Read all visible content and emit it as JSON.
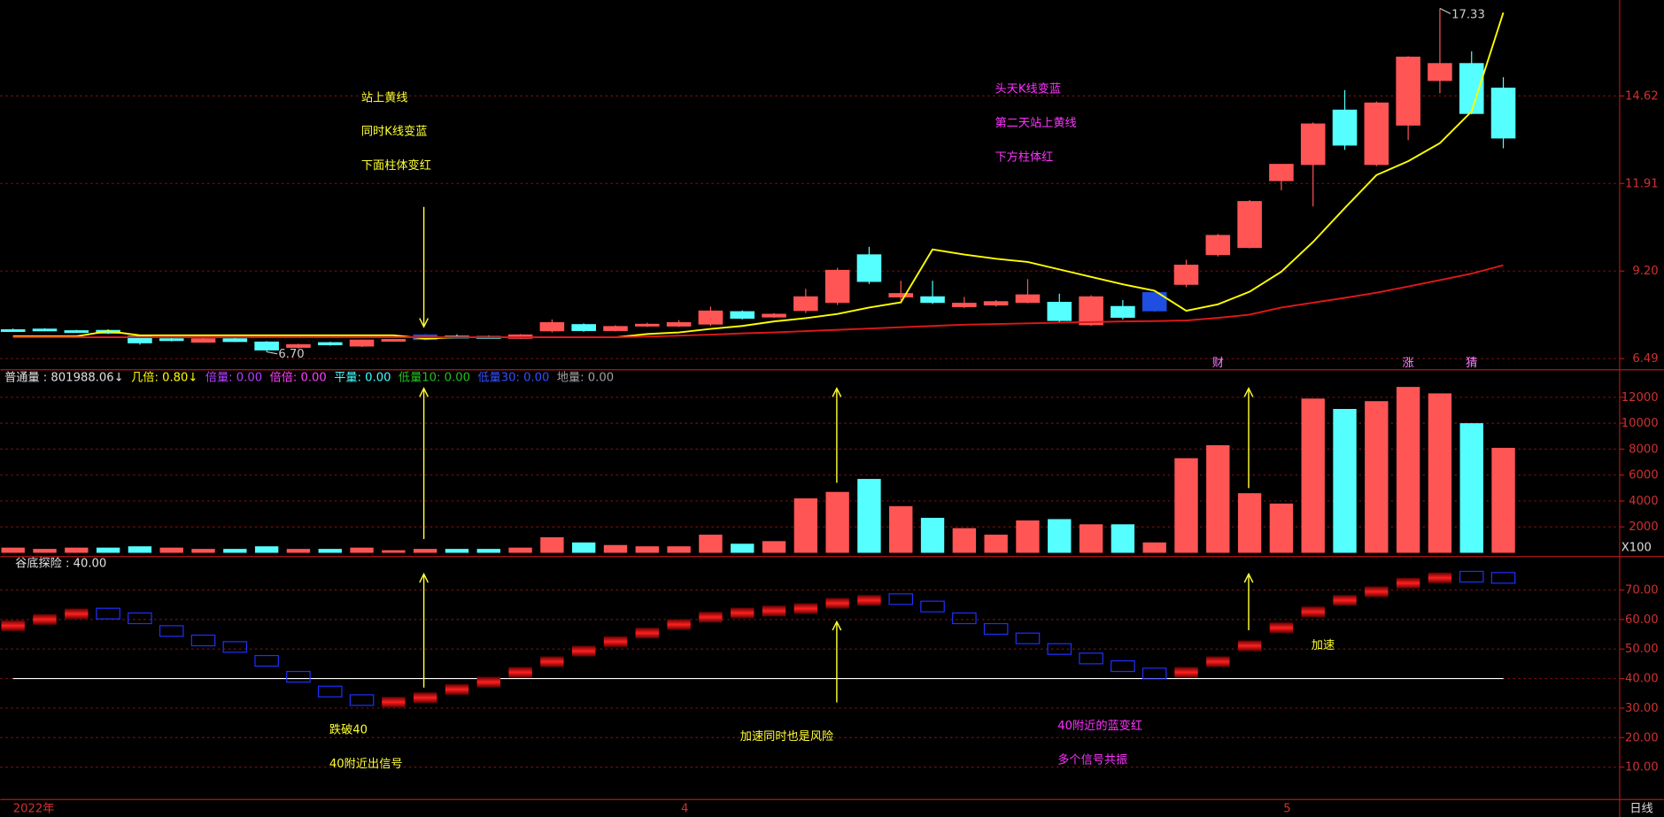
{
  "chart_data": [
    {
      "type": "candlestick",
      "open": [
        7.38,
        7.4,
        7.35,
        7.36,
        7.18,
        7.1,
        7.0,
        7.1,
        7.0,
        6.84,
        6.98,
        6.88,
        7.06,
        7.22,
        7.18,
        7.17,
        7.12,
        7.35,
        7.54,
        7.36,
        7.5,
        7.5,
        7.56,
        7.94,
        7.78,
        7.98,
        8.23,
        9.7,
        8.4,
        8.4,
        8.1,
        8.15,
        8.23,
        8.23,
        7.54,
        8.1,
        8.53,
        8.79,
        9.71,
        9.93,
        12.0,
        12.5,
        14.18,
        12.5,
        13.72,
        15.1,
        15.62,
        14.86
      ],
      "close": [
        7.36,
        7.36,
        7.33,
        7.28,
        6.98,
        7.06,
        7.1,
        7.02,
        6.76,
        6.92,
        6.92,
        7.06,
        7.08,
        7.08,
        7.16,
        7.16,
        7.22,
        7.6,
        7.36,
        7.48,
        7.55,
        7.6,
        7.96,
        7.74,
        7.86,
        8.4,
        9.22,
        8.88,
        8.5,
        8.23,
        8.2,
        8.25,
        8.46,
        7.67,
        8.4,
        7.77,
        7.97,
        9.38,
        10.3,
        11.35,
        12.5,
        13.75,
        13.1,
        14.4,
        15.82,
        15.62,
        14.08,
        13.32
      ],
      "high": [
        7.42,
        7.43,
        7.38,
        7.4,
        7.22,
        7.14,
        7.13,
        7.13,
        7.03,
        6.95,
        7.01,
        7.08,
        7.1,
        7.25,
        7.24,
        7.2,
        7.25,
        7.7,
        7.58,
        7.52,
        7.6,
        7.68,
        8.1,
        7.98,
        7.9,
        8.65,
        9.3,
        9.95,
        8.9,
        8.9,
        8.4,
        8.3,
        8.95,
        8.5,
        8.45,
        8.3,
        8.6,
        9.55,
        10.35,
        11.4,
        12.5,
        13.8,
        14.8,
        14.45,
        15.85,
        17.33,
        16.0,
        15.2
      ],
      "low": [
        7.33,
        7.34,
        7.3,
        7.25,
        6.92,
        7.02,
        6.98,
        7.0,
        6.7,
        6.8,
        6.89,
        6.85,
        7.04,
        7.05,
        7.12,
        7.13,
        7.1,
        7.3,
        7.32,
        7.33,
        7.47,
        7.47,
        7.5,
        7.7,
        7.75,
        7.9,
        8.15,
        8.8,
        8.3,
        8.18,
        8.05,
        8.1,
        8.2,
        7.6,
        7.5,
        7.7,
        7.94,
        8.7,
        9.65,
        9.9,
        11.7,
        11.2,
        12.95,
        12.45,
        13.25,
        14.7,
        14.05,
        13.0
      ],
      "colors": [
        "#55ffff",
        "#55ffff",
        "#55ffff",
        "#55ffff",
        "#55ffff",
        "#55ffff",
        "#ff5555",
        "#55ffff",
        "#55ffff",
        "#ff5555",
        "#55ffff",
        "#ff5555",
        "#ff5555",
        "#1f4fe0",
        "#55ffff",
        "#55ffff",
        "#ff5555",
        "#ff5555",
        "#55ffff",
        "#ff5555",
        "#ff5555",
        "#ff5555",
        "#ff5555",
        "#55ffff",
        "#ff5555",
        "#ff5555",
        "#ff5555",
        "#55ffff",
        "#ff5555",
        "#55ffff",
        "#ff5555",
        "#ff5555",
        "#ff5555",
        "#55ffff",
        "#ff5555",
        "#55ffff",
        "#1f4fe0",
        "#ff5555",
        "#ff5555",
        "#ff5555",
        "#ff5555",
        "#ff5555",
        "#55ffff",
        "#ff5555",
        "#ff5555",
        "#ff5555",
        "#55ffff",
        "#55ffff"
      ],
      "lines": [
        {
          "color": "#ffff00",
          "values": [
            7.18,
            7.18,
            7.18,
            7.34,
            7.21,
            7.21,
            7.21,
            7.21,
            7.21,
            7.21,
            7.21,
            7.21,
            7.21,
            7.11,
            7.15,
            7.15,
            7.15,
            7.15,
            7.15,
            7.15,
            7.25,
            7.3,
            7.41,
            7.5,
            7.64,
            7.74,
            7.87,
            8.07,
            8.23,
            9.87,
            9.71,
            9.58,
            9.48,
            9.25,
            9.02,
            8.79,
            8.59,
            7.97,
            8.17,
            8.56,
            9.18,
            10.1,
            11.15,
            12.17,
            12.6,
            13.16,
            14.14,
            17.2
          ]
        },
        {
          "color": "#e01818",
          "values": [
            7.15,
            7.15,
            7.15,
            7.15,
            7.15,
            7.15,
            7.15,
            7.15,
            7.15,
            7.15,
            7.15,
            7.15,
            7.15,
            7.15,
            7.15,
            7.15,
            7.15,
            7.15,
            7.15,
            7.15,
            7.17,
            7.2,
            7.23,
            7.27,
            7.3,
            7.34,
            7.38,
            7.42,
            7.46,
            7.5,
            7.54,
            7.56,
            7.58,
            7.6,
            7.62,
            7.64,
            7.65,
            7.67,
            7.75,
            7.85,
            8.07,
            8.22,
            8.37,
            8.53,
            8.72,
            8.92,
            9.12,
            9.38
          ]
        }
      ],
      "max_label": "17.33",
      "min_label": "6.70",
      "event_labels": [
        null,
        null,
        null,
        null,
        null,
        null,
        null,
        null,
        null,
        null,
        null,
        null,
        null,
        null,
        null,
        null,
        null,
        null,
        null,
        null,
        null,
        null,
        null,
        null,
        null,
        null,
        null,
        null,
        null,
        null,
        null,
        null,
        null,
        null,
        null,
        null,
        null,
        null,
        "财",
        null,
        null,
        null,
        null,
        null,
        "涨",
        null,
        "猜",
        null
      ],
      "ylim": [
        6.16,
        17.59
      ],
      "yticks": [
        6.49,
        {
          "value": 9.2,
          "label": "9.20"
        },
        11.91,
        14.62
      ],
      "grid": true
    },
    {
      "type": "bar",
      "header": [
        {
          "text": "普通量 : 801988.06↓",
          "color": "#e0e0e0"
        },
        {
          "text": "几倍: 0.80↓",
          "color": "#ffff00"
        },
        {
          "text": "倍量: 0.00",
          "color": "#b040ff"
        },
        {
          "text": "倍倍: 0.00",
          "color": "#ff40ff"
        },
        {
          "text": "平量: 0.00",
          "color": "#40ffff"
        },
        {
          "text": "低量10: 0.00",
          "color": "#20c020"
        },
        {
          "text": "低量30: 0.00",
          "color": "#3050ff"
        },
        {
          "text": "地量: 0.00",
          "color": "#a0a0a0"
        }
      ],
      "values": [
        400,
        300,
        400,
        400,
        500,
        400,
        300,
        300,
        500,
        300,
        300,
        400,
        200,
        300,
        300,
        300,
        400,
        1200,
        800,
        600,
        500,
        500,
        1400,
        700,
        900,
        4200,
        4700,
        5700,
        3600,
        2700,
        1900,
        1400,
        2500,
        2600,
        2200,
        2200,
        800,
        7300,
        8300,
        4600,
        3800,
        11900,
        11100,
        11700,
        12800,
        12300,
        10000,
        8100
      ],
      "colors": [
        "#ff5555",
        "#ff5555",
        "#ff5555",
        "#55ffff",
        "#55ffff",
        "#ff5555",
        "#ff5555",
        "#55ffff",
        "#55ffff",
        "#ff5555",
        "#55ffff",
        "#ff5555",
        "#ff5555",
        "#ff5555",
        "#55ffff",
        "#55ffff",
        "#ff5555",
        "#ff5555",
        "#55ffff",
        "#ff5555",
        "#ff5555",
        "#ff5555",
        "#ff5555",
        "#55ffff",
        "#ff5555",
        "#ff5555",
        "#ff5555",
        "#55ffff",
        "#ff5555",
        "#55ffff",
        "#ff5555",
        "#ff5555",
        "#ff5555",
        "#55ffff",
        "#ff5555",
        "#55ffff",
        "#ff5555",
        "#ff5555",
        "#ff5555",
        "#ff5555",
        "#ff5555",
        "#ff5555",
        "#55ffff",
        "#ff5555",
        "#ff5555",
        "#ff5555",
        "#55ffff",
        "#ff5555"
      ],
      "unit_label": "X100",
      "ylim": [
        0,
        14000
      ],
      "yticks": [
        2000,
        4000,
        6000,
        8000,
        10000,
        12000
      ],
      "grid": true
    },
    {
      "type": "box-line",
      "title": "谷底探险 : 40.00",
      "values": [
        57.9,
        60.0,
        61.9,
        62.0,
        60.4,
        56.1,
        52.9,
        50.7,
        46.0,
        40.6,
        35.6,
        32.7,
        32.0,
        33.5,
        36.3,
        38.8,
        42.1,
        45.7,
        49.3,
        52.5,
        55.4,
        58.3,
        60.8,
        62.2,
        62.9,
        63.7,
        65.5,
        66.5,
        66.9,
        64.4,
        60.4,
        56.8,
        53.6,
        50.0,
        46.8,
        44.2,
        41.7,
        42.1,
        45.7,
        51.1,
        57.2,
        62.6,
        66.5,
        69.4,
        72.3,
        74.1,
        74.5,
        74.1
      ],
      "colors": [
        "#e01010",
        "#e01010",
        "#e01010",
        "#2030ff",
        "#2030ff",
        "#2030ff",
        "#2030ff",
        "#2030ff",
        "#2030ff",
        "#2030ff",
        "#2030ff",
        "#2030ff",
        "#e01010",
        "#e01010",
        "#e01010",
        "#e01010",
        "#e01010",
        "#e01010",
        "#e01010",
        "#e01010",
        "#e01010",
        "#e01010",
        "#e01010",
        "#e01010",
        "#e01010",
        "#e01010",
        "#e01010",
        "#e01010",
        "#2030ff",
        "#2030ff",
        "#2030ff",
        "#2030ff",
        "#2030ff",
        "#2030ff",
        "#2030ff",
        "#2030ff",
        "#2030ff",
        "#e01010",
        "#e01010",
        "#e01010",
        "#e01010",
        "#e01010",
        "#e01010",
        "#e01010",
        "#e01010",
        "#e01010",
        "#2030ff",
        "#2030ff"
      ],
      "reference_line": 40,
      "categories": [
        "2022年",
        null,
        null,
        null,
        null,
        null,
        null,
        null,
        null,
        null,
        null,
        null,
        null,
        null,
        null,
        null,
        null,
        null,
        null,
        null,
        null,
        "4",
        null,
        null,
        null,
        null,
        null,
        null,
        null,
        null,
        null,
        null,
        null,
        null,
        null,
        null,
        null,
        null,
        null,
        null,
        "5",
        null,
        null,
        null,
        null,
        null,
        null,
        null
      ],
      "period_label": "日线",
      "ylim": [
        0,
        80
      ],
      "yticks": [
        {
          "value": 10,
          "label": "10.00"
        },
        {
          "value": 20,
          "label": "20.00"
        },
        {
          "value": 30,
          "label": "30.00"
        },
        {
          "value": 40,
          "label": "40.00"
        },
        {
          "value": 50,
          "label": "50.00"
        },
        {
          "value": 60,
          "label": "60.00"
        },
        {
          "value": 70,
          "label": "70.00"
        }
      ],
      "grid": true
    }
  ],
  "annotations": [
    {
      "color": "#ffff33",
      "lines": [
        "站上黄线",
        "同时K线变蓝",
        "下面柱体变红"
      ]
    },
    {
      "color": "#ff33ff",
      "lines": [
        "头天K线变蓝",
        "第二天站上黄线",
        "下方柱体红"
      ]
    },
    {
      "color": "#ffff33",
      "lines": [
        "跌破40",
        "40附近出信号"
      ]
    },
    {
      "color": "#ffff33",
      "lines": [
        "加速同时也是风险"
      ]
    },
    {
      "color": "#ff33ff",
      "lines": [
        "40附近的蓝变红",
        "多个信号共振"
      ]
    },
    {
      "color": "#ffff33",
      "lines": [
        "加速"
      ]
    }
  ]
}
